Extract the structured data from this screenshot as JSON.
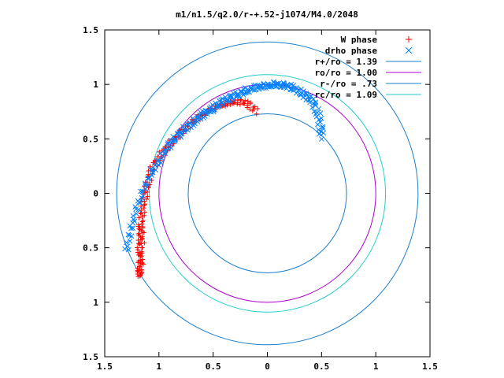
{
  "chart_data": {
    "type": "scatter",
    "title": "m1/n1.5/q2.0/r-+.52-j1074/M4.0/2048",
    "xlim": [
      -1.5,
      1.5
    ],
    "ylim": [
      -1.5,
      1.5
    ],
    "x_ticks": [
      -1.5,
      -1,
      -0.5,
      0,
      0.5,
      1,
      1.5
    ],
    "y_ticks": [
      -1.5,
      -1,
      -0.5,
      0,
      0.5,
      1,
      1.5
    ],
    "x_tick_labels": [
      "1.5",
      "1",
      "0.5",
      "0",
      "0.5",
      "1",
      "1.5"
    ],
    "y_tick_labels": [
      "1.5",
      "1",
      "0.5",
      "0",
      "0.5",
      "1",
      "1.5"
    ],
    "grid": false,
    "legend_position": "top-right",
    "series": [
      {
        "name": "W phase",
        "marker": "+",
        "color": "#ff0000",
        "x": [
          -0.1,
          -0.15,
          -0.2,
          -0.25,
          -0.3,
          -0.35,
          -0.4,
          -0.45,
          -0.5,
          -0.55,
          -0.6,
          -0.65,
          -0.7,
          -0.75,
          -0.8,
          -0.85,
          -0.9,
          -0.95,
          -1.0,
          -1.05,
          -1.08,
          -1.1,
          -1.12,
          -1.14,
          -1.15,
          -1.16,
          -1.17,
          -1.17,
          -1.17,
          -1.18,
          -1.17,
          -1.17,
          -1.18,
          -1.18,
          -1.17,
          -1.15,
          -1.17
        ],
        "y": [
          0.75,
          0.8,
          0.83,
          0.84,
          0.84,
          0.83,
          0.82,
          0.8,
          0.78,
          0.75,
          0.72,
          0.69,
          0.65,
          0.6,
          0.55,
          0.5,
          0.45,
          0.4,
          0.32,
          0.25,
          0.18,
          0.1,
          0.02,
          -0.06,
          -0.14,
          -0.22,
          -0.3,
          -0.38,
          -0.46,
          -0.52,
          -0.58,
          -0.63,
          -0.68,
          -0.73,
          -0.76,
          -0.42,
          -0.3
        ]
      },
      {
        "name": "drho phase",
        "marker": "x",
        "color": "#0080ff",
        "x": [
          0.5,
          0.49,
          0.47,
          0.44,
          0.4,
          0.35,
          0.3,
          0.25,
          0.2,
          0.15,
          0.1,
          0.05,
          0.0,
          -0.05,
          -0.1,
          -0.15,
          -0.2,
          -0.25,
          -0.3,
          -0.35,
          -0.4,
          -0.45,
          -0.5,
          -0.55,
          -0.6,
          -0.65,
          -0.7,
          -0.75,
          -0.8,
          -0.85,
          -0.9,
          -0.95,
          -1.0,
          -1.05,
          -1.1,
          -1.15,
          -1.2,
          -1.24,
          -1.27,
          -1.3
        ],
        "y": [
          0.52,
          0.62,
          0.72,
          0.8,
          0.86,
          0.9,
          0.93,
          0.96,
          0.98,
          0.99,
          1.0,
          1.0,
          0.99,
          0.98,
          0.97,
          0.96,
          0.94,
          0.92,
          0.9,
          0.87,
          0.85,
          0.82,
          0.78,
          0.75,
          0.72,
          0.68,
          0.64,
          0.6,
          0.55,
          0.5,
          0.45,
          0.38,
          0.3,
          0.22,
          0.12,
          0.0,
          -0.12,
          -0.25,
          -0.38,
          -0.53
        ]
      },
      {
        "name": "r+/ro = 1.39",
        "type": "circle",
        "radius": 1.39,
        "color": "#1a7fcc"
      },
      {
        "name": "ro/ro = 1.00",
        "type": "circle",
        "radius": 1.0,
        "color": "#aa00cc"
      },
      {
        "name": "r-/ro = .73",
        "type": "circle",
        "radius": 0.73,
        "color": "#1a7fcc"
      },
      {
        "name": "rc/ro = 1.09",
        "type": "circle",
        "radius": 1.09,
        "color": "#22cccc"
      }
    ]
  }
}
